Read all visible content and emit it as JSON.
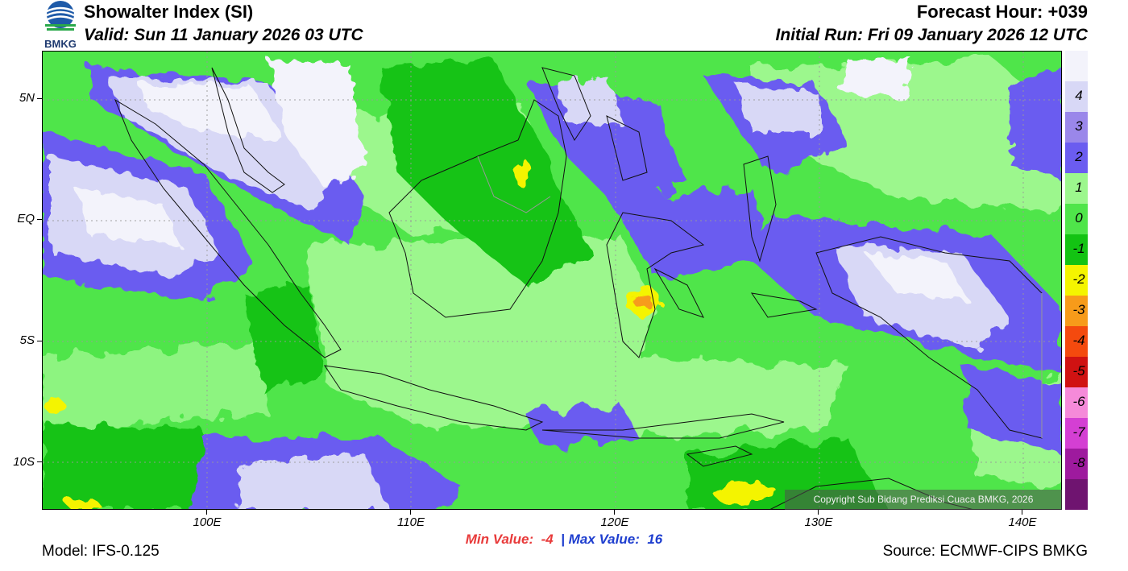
{
  "header": {
    "title": "Showalter Index (SI)",
    "valid": "Valid: Sun 11 January 2026 03 UTC",
    "forecast_hour": "Forecast Hour: +039",
    "initial_run": "Initial Run: Fri 09 January 2026 12 UTC"
  },
  "logo": {
    "text": "BMKG"
  },
  "axes": {
    "lat_labels": [
      "5N",
      "EQ",
      "5S",
      "10S"
    ],
    "lon_labels": [
      "100E",
      "110E",
      "120E",
      "130E",
      "140E"
    ]
  },
  "colorbar": {
    "labels": [
      "4",
      "3",
      "2",
      "1",
      "0",
      "-1",
      "-2",
      "-3",
      "-4",
      "-5",
      "-6",
      "-7",
      "-8"
    ],
    "colors": [
      "#f3f3fb",
      "#d8d8f6",
      "#9a87ea",
      "#6b5cf0",
      "#9cf78d",
      "#4fe54a",
      "#13c313",
      "#f4f400",
      "#f79b1a",
      "#f44a0e",
      "#d01212",
      "#f58ad9",
      "#d43fd3",
      "#9e1a9e",
      "#6f1470"
    ]
  },
  "stats": {
    "min_label": "Min Value:",
    "min_value": "-4",
    "separator": "|",
    "max_label": "Max Value:",
    "max_value": "16"
  },
  "footer": {
    "model": "Model: IFS-0.125",
    "source": "Source: ECMWF-CIPS BMKG",
    "copyright": "Copyright Sub Bidang Prediksi Cuaca BMKG, 2026"
  }
}
